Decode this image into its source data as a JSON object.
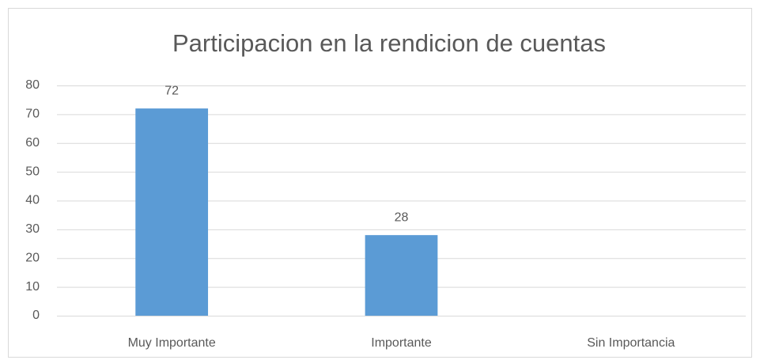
{
  "chart_data": {
    "type": "bar",
    "title": "Participacion en la rendicion de cuentas",
    "categories": [
      "Muy Importante",
      "Importante",
      "Sin Importancia"
    ],
    "values": [
      72,
      28,
      null
    ],
    "color": "#5b9bd5",
    "ylim": [
      0,
      80
    ],
    "yticks": [
      0,
      10,
      20,
      30,
      40,
      50,
      60,
      70,
      80
    ],
    "grid": true
  }
}
